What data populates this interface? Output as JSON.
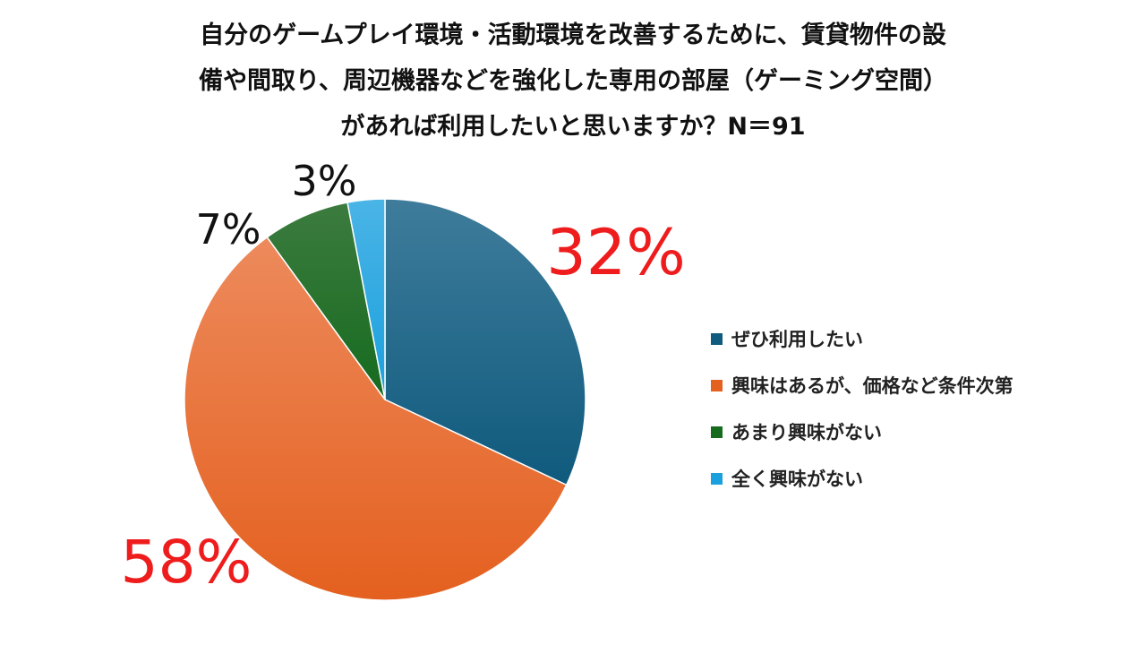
{
  "title_lines": [
    "自分のゲームプレイ環境・活動環境を改善するために、賃貸物件の設",
    "備や間取り、周辺機器などを強化した専用の部屋（ゲーミング空間）",
    "があれば利用したいと思いますか？N＝91"
  ],
  "chart_data": {
    "type": "pie",
    "title": "自分のゲームプレイ環境・活動環境を改善するために、賃貸物件の設備や間取り、周辺機器などを強化した専用の部屋（ゲーミング空間）があれば利用したいと思いますか？N＝91",
    "legend_position": "right",
    "start_angle": "top, clockwise",
    "slices": [
      {
        "label": "ぜひ利用したい",
        "value": 32,
        "display": "32%",
        "color": "#0f5a7d",
        "color_light": "#3f7c9b",
        "label_color": "#ee1c1c",
        "label_size": "large"
      },
      {
        "label": "興味はあるが、価格など条件次第",
        "value": 58,
        "display": "58%",
        "color": "#e4601f",
        "color_light": "#ed8a5c",
        "label_color": "#ee1c1c",
        "label_size": "large"
      },
      {
        "label": "あまり興味がない",
        "value": 7,
        "display": "7%",
        "color": "#166b1f",
        "color_light": "#3c7b3f",
        "label_color": "#111111",
        "label_size": "medium"
      },
      {
        "label": "全く興味がない",
        "value": 3,
        "display": "3%",
        "color": "#1aa0dd",
        "color_light": "#4ab4e6",
        "label_color": "#111111",
        "label_size": "medium"
      }
    ]
  }
}
